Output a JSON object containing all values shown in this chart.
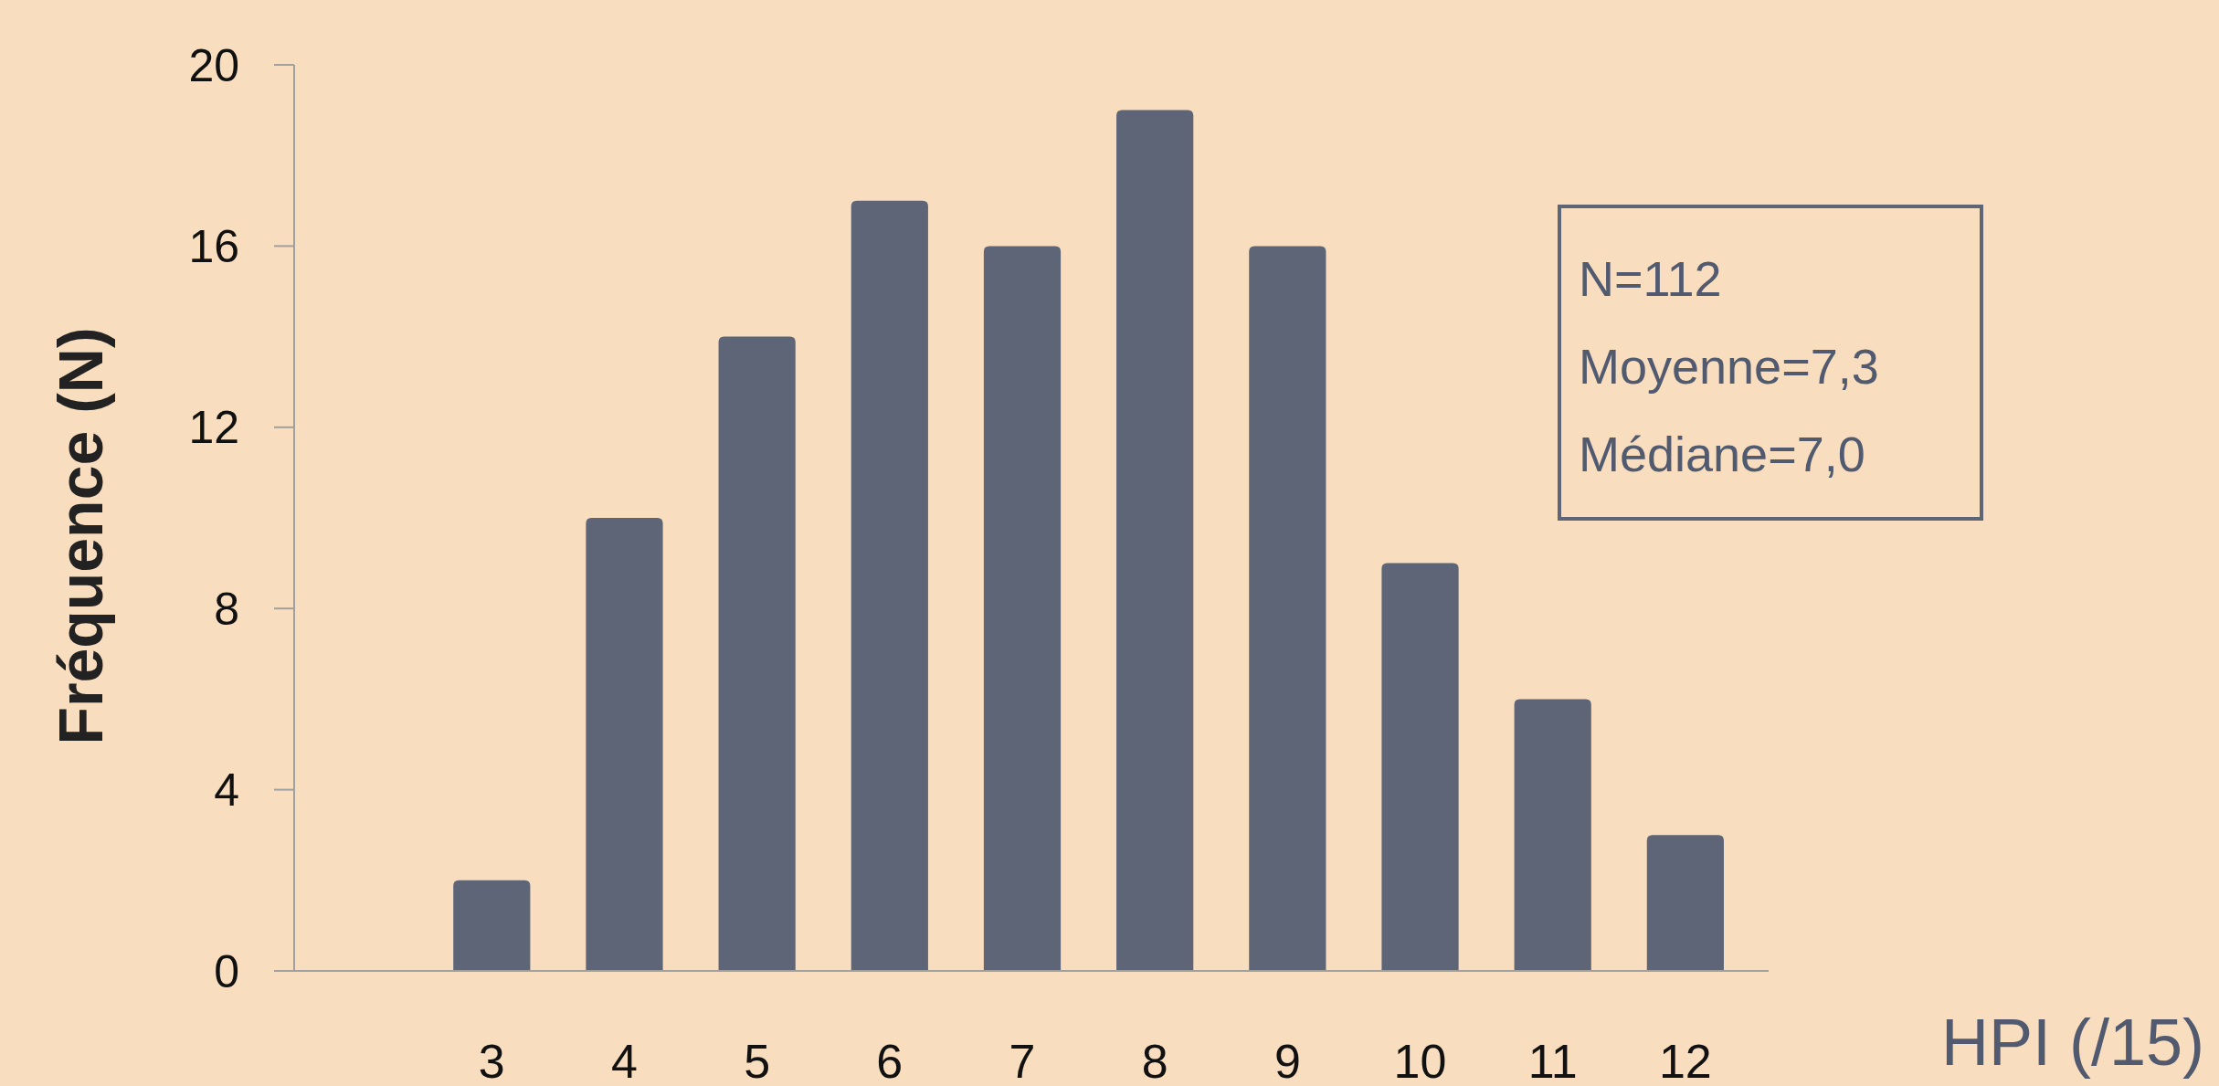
{
  "chart_data": {
    "type": "bar",
    "xlabel": "HPI (/15)",
    "ylabel": "Fréquence (N)",
    "categories": [
      null,
      "3",
      "4",
      "5",
      "6",
      "7",
      "8",
      "9",
      "10",
      "11",
      "12"
    ],
    "values": [
      null,
      2,
      10,
      14,
      17,
      16,
      19,
      16,
      9,
      6,
      3
    ],
    "color": "#5d6577",
    "ylim": [
      0,
      20
    ],
    "yticks": [
      0,
      4,
      8,
      12,
      16,
      20
    ],
    "grid": false,
    "annotations": [
      "N=112",
      "Moyenne=7,3",
      "Médiane=7,0"
    ]
  }
}
